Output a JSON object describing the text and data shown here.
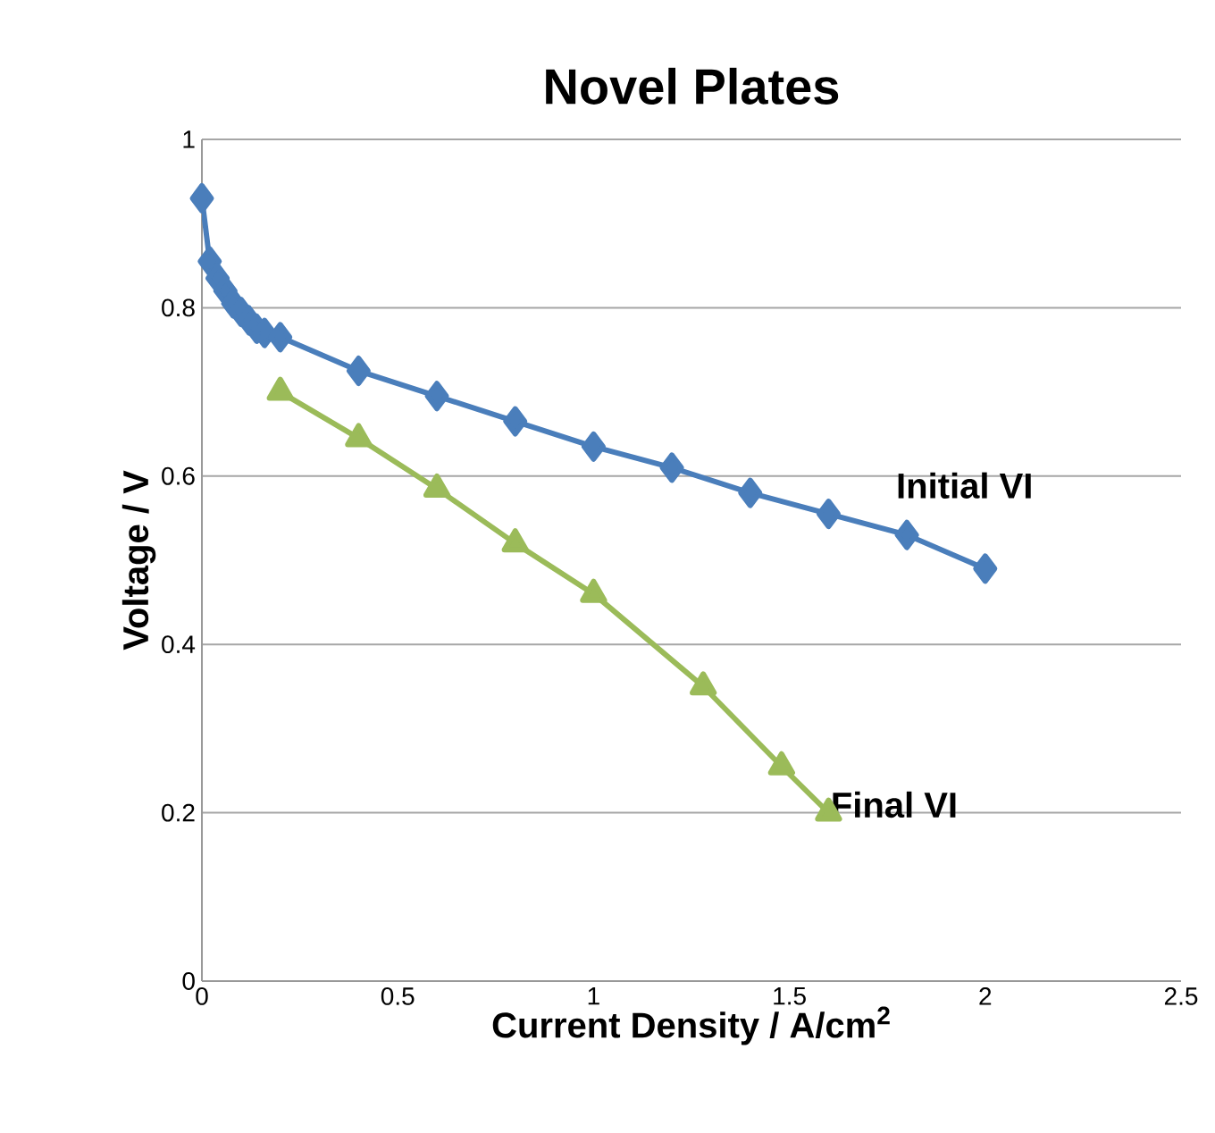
{
  "chart_data": {
    "type": "line",
    "title": "Novel Plates",
    "xlabel": "Current Density / A/cm$^{2}$",
    "ylabel": "Voltage / V",
    "xlim": [
      0,
      2.5
    ],
    "ylim": [
      0,
      1
    ],
    "xticks": [
      0,
      0.5,
      1,
      1.5,
      2,
      2.5
    ],
    "yticks": [
      0,
      0.2,
      0.4,
      0.6,
      0.8,
      1
    ],
    "grid": "y",
    "series": [
      {
        "name": "Initial VI",
        "color": "#4a7ebb",
        "marker": "diamond",
        "x": [
          0,
          0.02,
          0.04,
          0.06,
          0.08,
          0.1,
          0.12,
          0.14,
          0.16,
          0.2,
          0.4,
          0.6,
          0.8,
          1.0,
          1.2,
          1.4,
          1.6,
          1.8,
          2.0
        ],
        "values": [
          0.93,
          0.855,
          0.835,
          0.82,
          0.805,
          0.795,
          0.785,
          0.775,
          0.77,
          0.765,
          0.725,
          0.695,
          0.665,
          0.635,
          0.61,
          0.58,
          0.555,
          0.53,
          0.49
        ]
      },
      {
        "name": "Final VI",
        "color": "#9bbb59",
        "marker": "triangle",
        "x": [
          0.2,
          0.4,
          0.6,
          0.8,
          1.0,
          1.28,
          1.48,
          1.6
        ],
        "values": [
          0.7,
          0.645,
          0.585,
          0.52,
          0.46,
          0.35,
          0.255,
          0.2
        ]
      }
    ]
  }
}
